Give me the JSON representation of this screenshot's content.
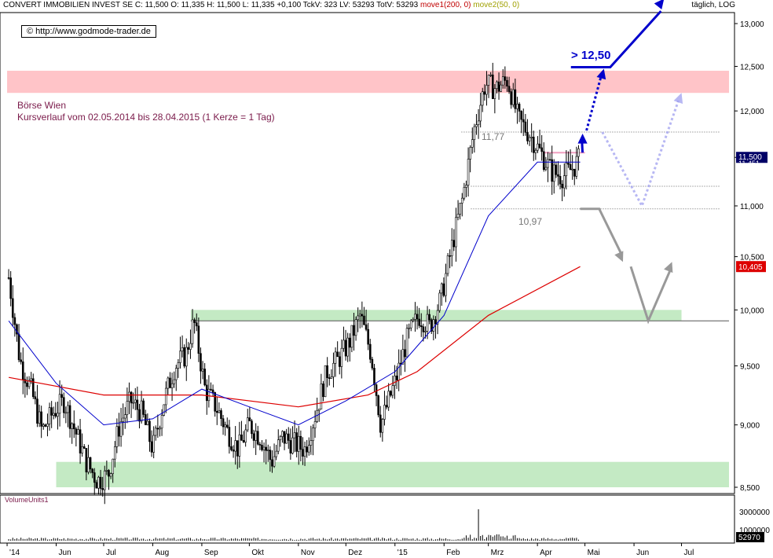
{
  "header": {
    "instrument": "CONVERT IMMOBILIEN INVEST SE",
    "ohlc_line": "C: 11,500  O: 11,335  H: 11,500  L: 11,335  +0,100  TckV: 323  LV: 53293  TotV: 53293",
    "ma1_label": "move1(200, 0)",
    "ma2_label": "move2(50, 0)",
    "interval": "täglich, LOG"
  },
  "copyright": "© http://www.godmode-trader.de",
  "subtitle": {
    "line1": "Börse Wien",
    "line2": "Kursverlauf vom 02.05.2014 bis 28.04.2015 (1 Kerze = 1 Tag)"
  },
  "annotations": {
    "level_high": "11,77",
    "level_low": "10,97",
    "target": "> 12,50"
  },
  "volume": {
    "label": "VolumeUnits1",
    "ticks": [
      "3000000",
      "1000000"
    ],
    "last": "52970"
  },
  "colors": {
    "resistance_zone": "#ffc4c8",
    "support_zone": "#c4eac4",
    "ma200": "#dd0000",
    "ma50": "#0000cc",
    "arrow_up": "#0000cc",
    "arrow_down": "#999999",
    "price_box": "#000066",
    "ma200_box": "#dd0000"
  },
  "chart_data": {
    "type": "candlestick",
    "scale": "log",
    "ylim": [
      8.5,
      13.0
    ],
    "y_ticks": [
      "8,500",
      "9,000",
      "9,500",
      "10,000",
      "10,500",
      "11,000",
      "11,500",
      "12,000",
      "12,500",
      "13,000"
    ],
    "x_ticks": [
      "'14",
      "Jun",
      "Jul",
      "Aug",
      "Sep",
      "Okt",
      "Nov",
      "Dez",
      "'15",
      "Feb",
      "Mrz",
      "Apr",
      "Mai",
      "Jun",
      "Jul"
    ],
    "last_price": "11,500",
    "last_price_sub": "11,451",
    "ma200_value": "10,405",
    "price_path": [
      [
        "2014-05-02",
        10.3
      ],
      [
        "2014-05-09",
        9.55
      ],
      [
        "2014-05-16",
        9.3
      ],
      [
        "2014-05-23",
        8.95
      ],
      [
        "2014-05-30",
        9.1
      ],
      [
        "2014-06-06",
        9.2
      ],
      [
        "2014-06-13",
        8.95
      ],
      [
        "2014-06-20",
        8.7
      ],
      [
        "2014-06-27",
        8.55
      ],
      [
        "2014-07-04",
        8.6
      ],
      [
        "2014-07-11",
        9.0
      ],
      [
        "2014-07-18",
        9.2
      ],
      [
        "2014-07-25",
        9.1
      ],
      [
        "2014-08-01",
        8.8
      ],
      [
        "2014-08-08",
        9.2
      ],
      [
        "2014-08-15",
        9.5
      ],
      [
        "2014-08-22",
        9.6
      ],
      [
        "2014-08-27",
        9.9
      ],
      [
        "2014-09-03",
        9.3
      ],
      [
        "2014-09-10",
        9.15
      ],
      [
        "2014-09-17",
        8.95
      ],
      [
        "2014-09-24",
        8.8
      ],
      [
        "2014-10-01",
        9.0
      ],
      [
        "2014-10-08",
        8.9
      ],
      [
        "2014-10-15",
        8.7
      ],
      [
        "2014-10-22",
        8.9
      ],
      [
        "2014-10-29",
        8.85
      ],
      [
        "2014-11-05",
        8.8
      ],
      [
        "2014-11-12",
        9.1
      ],
      [
        "2014-11-19",
        9.45
      ],
      [
        "2014-11-26",
        9.55
      ],
      [
        "2014-12-03",
        9.7
      ],
      [
        "2014-12-10",
        9.95
      ],
      [
        "2014-12-17",
        9.6
      ],
      [
        "2014-12-23",
        9.0
      ],
      [
        "2015-01-02",
        9.4
      ],
      [
        "2015-01-09",
        9.75
      ],
      [
        "2015-01-16",
        9.95
      ],
      [
        "2015-01-23",
        9.85
      ],
      [
        "2015-01-30",
        10.1
      ],
      [
        "2015-02-06",
        10.6
      ],
      [
        "2015-02-13",
        11.1
      ],
      [
        "2015-02-20",
        11.8
      ],
      [
        "2015-02-27",
        12.3
      ],
      [
        "2015-03-06",
        12.25
      ],
      [
        "2015-03-13",
        12.35
      ],
      [
        "2015-03-20",
        11.9
      ],
      [
        "2015-03-27",
        11.75
      ],
      [
        "2015-04-03",
        11.55
      ],
      [
        "2015-04-10",
        11.35
      ],
      [
        "2015-04-17",
        11.3
      ],
      [
        "2015-04-24",
        11.4
      ],
      [
        "2015-04-28",
        11.5
      ]
    ],
    "ma50_path": [
      [
        "2014-05-02",
        9.9
      ],
      [
        "2014-06-01",
        9.35
      ],
      [
        "2014-07-01",
        9.0
      ],
      [
        "2014-08-01",
        9.05
      ],
      [
        "2014-09-01",
        9.3
      ],
      [
        "2014-10-01",
        9.15
      ],
      [
        "2014-11-01",
        9.0
      ],
      [
        "2014-12-01",
        9.2
      ],
      [
        "2015-01-01",
        9.45
      ],
      [
        "2015-02-01",
        9.95
      ],
      [
        "2015-03-01",
        10.9
      ],
      [
        "2015-04-01",
        11.45
      ],
      [
        "2015-04-28",
        11.45
      ]
    ],
    "ma200_path": [
      [
        "2014-05-02",
        9.4
      ],
      [
        "2014-07-01",
        9.25
      ],
      [
        "2014-09-01",
        9.25
      ],
      [
        "2014-11-01",
        9.15
      ],
      [
        "2014-12-15",
        9.25
      ],
      [
        "2015-01-15",
        9.45
      ],
      [
        "2015-03-01",
        9.95
      ],
      [
        "2015-04-28",
        10.405
      ]
    ],
    "zones": [
      {
        "kind": "resistance",
        "from": "2014-05-01",
        "to": "2015-07-31",
        "low": 12.2,
        "high": 12.45
      },
      {
        "kind": "support",
        "from": "2014-08-25",
        "to": "2015-07-01",
        "low": 9.9,
        "high": 10.0
      },
      {
        "kind": "support",
        "from": "2014-06-01",
        "to": "2015-07-31",
        "low": 8.5,
        "high": 8.7
      }
    ],
    "levels": [
      11.77,
      11.2,
      10.97,
      9.9
    ],
    "scenario_up": [
      [
        "2015-04-28",
        11.6
      ],
      [
        "2015-05-01",
        11.77
      ],
      [
        "2015-05-12",
        12.5
      ],
      [
        "2015-06-20",
        13.2
      ]
    ],
    "scenario_alt": [
      [
        "2015-05-12",
        11.77
      ],
      [
        "2015-06-06",
        11.0
      ],
      [
        "2015-07-01",
        12.2
      ]
    ],
    "scenario_down": [
      [
        "2015-04-28",
        10.97
      ],
      [
        "2015-05-10",
        10.97
      ],
      [
        "2015-05-25",
        10.45
      ],
      [
        "2015-06-10",
        9.9
      ],
      [
        "2015-06-25",
        10.45
      ]
    ]
  }
}
